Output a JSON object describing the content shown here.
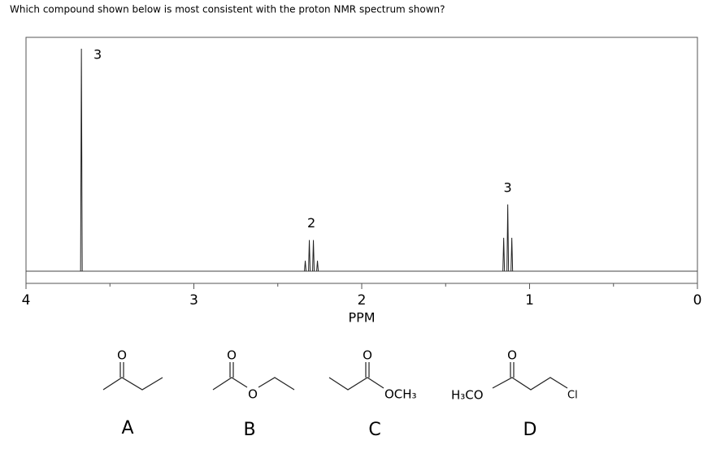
{
  "question": "Which compound shown below is most consistent with the proton NMR spectrum shown?",
  "spectrum": {
    "xlim": [
      4,
      0
    ],
    "xticks": [
      4,
      3,
      2,
      1,
      0
    ],
    "minor_xticks": [
      3.5,
      2.5,
      1.5,
      0.5
    ],
    "xlabel": "PPM",
    "ylim": [
      0,
      100
    ],
    "peaks": [
      {
        "shift": 3.67,
        "height": 100,
        "label": "3"
      },
      {
        "shift": 2.3,
        "height": 14,
        "label": "2"
      },
      {
        "shift": 1.13,
        "height": 30,
        "label": "3"
      }
    ]
  },
  "compounds": [
    {
      "letter": "A",
      "atoms": [
        "O"
      ]
    },
    {
      "letter": "B",
      "atoms": [
        "O",
        "O"
      ]
    },
    {
      "letter": "C",
      "atoms": [
        "O",
        "OCH₃"
      ]
    },
    {
      "letter": "D",
      "atoms": [
        "O",
        "H₃CO",
        "Cl"
      ]
    }
  ]
}
